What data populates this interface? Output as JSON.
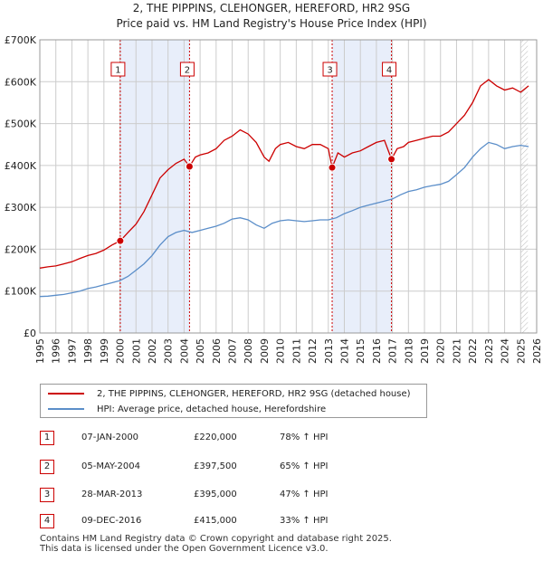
{
  "title_line1": "2, THE PIPPINS, CLEHONGER, HEREFORD, HR2 9SG",
  "title_line2": "Price paid vs. HM Land Registry's House Price Index (HPI)",
  "chart_data": {
    "type": "line",
    "title": "2, THE PIPPINS, CLEHONGER, HEREFORD, HR2 9SG",
    "subtitle": "Price paid vs. HM Land Registry's House Price Index (HPI)",
    "xlim": [
      1995,
      2026
    ],
    "ylim": [
      0,
      700000
    ],
    "x_ticks": [
      "1995",
      "1996",
      "1997",
      "1998",
      "1999",
      "2000",
      "2001",
      "2002",
      "2003",
      "2004",
      "2005",
      "2006",
      "2007",
      "2008",
      "2009",
      "2010",
      "2011",
      "2012",
      "2013",
      "2014",
      "2015",
      "2016",
      "2017",
      "2018",
      "2019",
      "2020",
      "2021",
      "2022",
      "2023",
      "2024",
      "2025",
      "2026"
    ],
    "y_ticks": [
      {
        "value": 0,
        "label": "£0"
      },
      {
        "value": 100000,
        "label": "£100K"
      },
      {
        "value": 200000,
        "label": "£200K"
      },
      {
        "value": 300000,
        "label": "£300K"
      },
      {
        "value": 400000,
        "label": "£400K"
      },
      {
        "value": 500000,
        "label": "£500K"
      },
      {
        "value": 600000,
        "label": "£600K"
      },
      {
        "value": 700000,
        "label": "£700K"
      }
    ],
    "shaded_periods": [
      [
        2000.02,
        2004.34
      ],
      [
        2013.24,
        2016.94
      ]
    ],
    "forecast_from": 2025.0,
    "series": [
      {
        "name": "2, THE PIPPINS, CLEHONGER, HEREFORD, HR2 9SG (detached house)",
        "color": "#cc0000",
        "x": [
          1995.0,
          1995.5,
          1996.0,
          1996.5,
          1997.0,
          1997.5,
          1998.0,
          1998.5,
          1999.0,
          1999.5,
          2000.02,
          2000.5,
          2001.0,
          2001.5,
          2002.0,
          2002.5,
          2003.0,
          2003.5,
          2004.0,
          2004.34,
          2004.7,
          2005.0,
          2005.5,
          2006.0,
          2006.5,
          2007.0,
          2007.5,
          2008.0,
          2008.5,
          2009.0,
          2009.3,
          2009.7,
          2010.0,
          2010.5,
          2011.0,
          2011.5,
          2012.0,
          2012.5,
          2013.0,
          2013.24,
          2013.6,
          2014.0,
          2014.5,
          2015.0,
          2015.5,
          2016.0,
          2016.5,
          2016.94,
          2017.3,
          2017.7,
          2018.0,
          2018.5,
          2019.0,
          2019.5,
          2020.0,
          2020.5,
          2021.0,
          2021.5,
          2022.0,
          2022.5,
          2023.0,
          2023.5,
          2024.0,
          2024.5,
          2025.0,
          2025.5
        ],
        "values": [
          155000,
          158000,
          160000,
          165000,
          170000,
          178000,
          185000,
          190000,
          198000,
          210000,
          220000,
          240000,
          260000,
          290000,
          330000,
          370000,
          390000,
          405000,
          415000,
          397500,
          420000,
          425000,
          430000,
          440000,
          460000,
          470000,
          485000,
          475000,
          455000,
          420000,
          410000,
          440000,
          450000,
          455000,
          445000,
          440000,
          450000,
          450000,
          440000,
          395000,
          430000,
          420000,
          430000,
          435000,
          445000,
          455000,
          460000,
          415000,
          440000,
          445000,
          455000,
          460000,
          465000,
          470000,
          470000,
          480000,
          500000,
          520000,
          550000,
          590000,
          605000,
          590000,
          580000,
          585000,
          575000,
          590000
        ]
      },
      {
        "name": "HPI: Average price, detached house, Herefordshire",
        "color": "#5b8ec9",
        "x": [
          1995.0,
          1995.5,
          1996.0,
          1996.5,
          1997.0,
          1997.5,
          1998.0,
          1998.5,
          1999.0,
          1999.5,
          2000.0,
          2000.5,
          2001.0,
          2001.5,
          2002.0,
          2002.5,
          2003.0,
          2003.5,
          2004.0,
          2004.5,
          2005.0,
          2005.5,
          2006.0,
          2006.5,
          2007.0,
          2007.5,
          2008.0,
          2008.5,
          2009.0,
          2009.5,
          2010.0,
          2010.5,
          2011.0,
          2011.5,
          2012.0,
          2012.5,
          2013.0,
          2013.5,
          2014.0,
          2014.5,
          2015.0,
          2015.5,
          2016.0,
          2016.5,
          2017.0,
          2017.5,
          2018.0,
          2018.5,
          2019.0,
          2019.5,
          2020.0,
          2020.5,
          2021.0,
          2021.5,
          2022.0,
          2022.5,
          2023.0,
          2023.5,
          2024.0,
          2024.5,
          2025.0,
          2025.5
        ],
        "values": [
          87000,
          88000,
          90000,
          92000,
          96000,
          100000,
          106000,
          110000,
          115000,
          120000,
          125000,
          135000,
          150000,
          165000,
          185000,
          210000,
          230000,
          240000,
          245000,
          240000,
          245000,
          250000,
          255000,
          262000,
          272000,
          275000,
          270000,
          258000,
          250000,
          262000,
          268000,
          270000,
          268000,
          266000,
          268000,
          270000,
          270000,
          275000,
          285000,
          292000,
          300000,
          305000,
          310000,
          315000,
          320000,
          330000,
          338000,
          342000,
          348000,
          352000,
          355000,
          362000,
          378000,
          395000,
          420000,
          440000,
          455000,
          450000,
          440000,
          445000,
          448000,
          445000
        ]
      }
    ],
    "sales": [
      {
        "n": "1",
        "x": 2000.02,
        "value": 220000,
        "date": "07-JAN-2000",
        "price": "£220,000",
        "hpi": "78% ↑ HPI"
      },
      {
        "n": "2",
        "x": 2004.34,
        "value": 397500,
        "date": "05-MAY-2004",
        "price": "£397,500",
        "hpi": "65% ↑ HPI"
      },
      {
        "n": "3",
        "x": 2013.24,
        "value": 395000,
        "date": "28-MAR-2013",
        "price": "£395,000",
        "hpi": "47% ↑ HPI"
      },
      {
        "n": "4",
        "x": 2016.94,
        "value": 415000,
        "date": "09-DEC-2016",
        "price": "£415,000",
        "hpi": "33% ↑ HPI"
      }
    ]
  },
  "legend": {
    "property": "2, THE PIPPINS, CLEHONGER, HEREFORD, HR2 9SG (detached house)",
    "hpi": "HPI: Average price, detached house, Herefordshire"
  },
  "colors": {
    "property": "#cc0000",
    "hpi": "#5b8ec9",
    "shade": "#e8eefa",
    "grid": "#cccccc"
  },
  "footer_line1": "Contains HM Land Registry data © Crown copyright and database right 2025.",
  "footer_line2": "This data is licensed under the Open Government Licence v3.0."
}
